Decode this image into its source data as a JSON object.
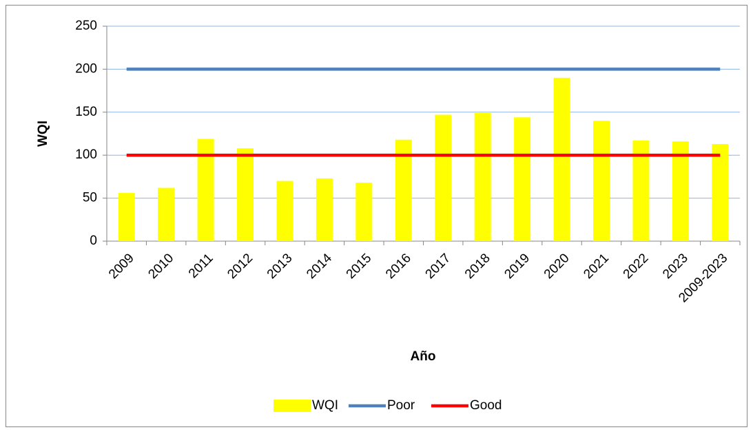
{
  "chart_data": {
    "type": "bar",
    "x_label": "Año",
    "y_label": "WQI",
    "categories": [
      "2009",
      "2010",
      "2011",
      "2012",
      "2013",
      "2014",
      "2015",
      "2016",
      "2017",
      "2018",
      "2019",
      "2020",
      "2021",
      "2022",
      "2023",
      "2009-2023"
    ],
    "series": [
      {
        "name": "WQI",
        "type": "bar",
        "color": "#ffff00",
        "values": [
          56,
          62,
          119,
          108,
          70,
          73,
          68,
          118,
          147,
          149,
          144,
          190,
          140,
          117,
          116,
          113
        ]
      },
      {
        "name": "Poor",
        "type": "line",
        "color": "#4f81bd",
        "values": [
          200,
          200,
          200,
          200,
          200,
          200,
          200,
          200,
          200,
          200,
          200,
          200,
          200,
          200,
          200,
          200
        ]
      },
      {
        "name": "Good",
        "type": "line",
        "color": "#ff0000",
        "values": [
          100,
          100,
          100,
          100,
          100,
          100,
          100,
          100,
          100,
          100,
          100,
          100,
          100,
          100,
          100,
          100
        ]
      }
    ],
    "ylim": [
      0,
      250
    ],
    "yticks": [
      0,
      50,
      100,
      150,
      200,
      250
    ],
    "grid": true,
    "legend": "bottom"
  }
}
